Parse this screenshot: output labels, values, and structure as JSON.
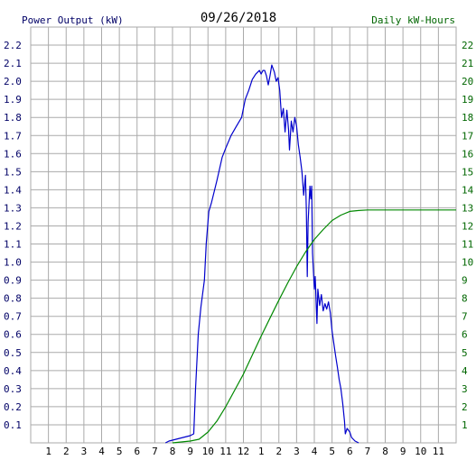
{
  "header": {
    "left_label": "Power Output (kW)",
    "date": "09/26/2018",
    "right_label": "Daily kW-Hours"
  },
  "colors": {
    "power": "#0000cc",
    "energy": "#008800",
    "grid": "#aaaaaa",
    "axis_text_left": "#000066",
    "axis_text_right": "#006600"
  },
  "chart_data": {
    "type": "line",
    "title": "09/26/2018",
    "x_tick_labels": [
      "1",
      "2",
      "3",
      "4",
      "5",
      "6",
      "7",
      "8",
      "9",
      "10",
      "11",
      "12",
      "1",
      "2",
      "3",
      "4",
      "5",
      "6",
      "7",
      "8",
      "9",
      "10",
      "11"
    ],
    "x_unit": "hour of day (0-24)",
    "xlim": [
      0,
      24
    ],
    "y_left": {
      "label": "Power Output (kW)",
      "ylim": [
        0,
        2.3
      ],
      "ticks": [
        "0.1",
        "0.2",
        "0.3",
        "0.4",
        "0.5",
        "0.6",
        "0.7",
        "0.8",
        "0.9",
        "1.0",
        "1.1",
        "1.2",
        "1.3",
        "1.4",
        "1.5",
        "1.6",
        "1.7",
        "1.8",
        "1.9",
        "2.0",
        "2.1",
        "2.2"
      ]
    },
    "y_right": {
      "label": "Daily kW-Hours",
      "ylim": [
        0,
        23
      ],
      "ticks": [
        "1",
        "2",
        "3",
        "4",
        "5",
        "6",
        "7",
        "8",
        "9",
        "10",
        "11",
        "12",
        "13",
        "14",
        "15",
        "16",
        "17",
        "18",
        "19",
        "20",
        "21",
        "22"
      ]
    },
    "grid": true,
    "series": [
      {
        "name": "Power Output (kW)",
        "axis": "left",
        "points": [
          [
            7.6,
            0.0
          ],
          [
            7.8,
            0.01
          ],
          [
            8.2,
            0.02
          ],
          [
            8.6,
            0.03
          ],
          [
            9.0,
            0.04
          ],
          [
            9.2,
            0.05
          ],
          [
            9.3,
            0.3
          ],
          [
            9.45,
            0.6
          ],
          [
            9.6,
            0.75
          ],
          [
            9.8,
            0.9
          ],
          [
            9.9,
            1.1
          ],
          [
            10.05,
            1.28
          ],
          [
            10.2,
            1.33
          ],
          [
            10.5,
            1.45
          ],
          [
            10.8,
            1.58
          ],
          [
            11.0,
            1.63
          ],
          [
            11.3,
            1.7
          ],
          [
            11.6,
            1.75
          ],
          [
            11.9,
            1.8
          ],
          [
            12.1,
            1.9
          ],
          [
            12.3,
            1.95
          ],
          [
            12.5,
            2.01
          ],
          [
            12.7,
            2.04
          ],
          [
            12.9,
            2.06
          ],
          [
            13.0,
            2.04
          ],
          [
            13.1,
            2.06
          ],
          [
            13.2,
            2.06
          ],
          [
            13.3,
            2.03
          ],
          [
            13.4,
            1.98
          ],
          [
            13.5,
            2.03
          ],
          [
            13.6,
            2.09
          ],
          [
            13.75,
            2.05
          ],
          [
            13.85,
            2.0
          ],
          [
            13.95,
            2.02
          ],
          [
            14.05,
            1.95
          ],
          [
            14.15,
            1.8
          ],
          [
            14.25,
            1.85
          ],
          [
            14.35,
            1.72
          ],
          [
            14.45,
            1.84
          ],
          [
            14.55,
            1.73
          ],
          [
            14.6,
            1.62
          ],
          [
            14.7,
            1.78
          ],
          [
            14.8,
            1.72
          ],
          [
            14.9,
            1.8
          ],
          [
            15.0,
            1.75
          ],
          [
            15.1,
            1.65
          ],
          [
            15.2,
            1.58
          ],
          [
            15.3,
            1.5
          ],
          [
            15.4,
            1.37
          ],
          [
            15.5,
            1.48
          ],
          [
            15.55,
            1.28
          ],
          [
            15.6,
            0.92
          ],
          [
            15.65,
            1.22
          ],
          [
            15.75,
            1.42
          ],
          [
            15.8,
            1.35
          ],
          [
            15.85,
            1.42
          ],
          [
            15.9,
            1.05
          ],
          [
            16.0,
            0.85
          ],
          [
            16.05,
            0.92
          ],
          [
            16.1,
            0.78
          ],
          [
            16.15,
            0.66
          ],
          [
            16.2,
            0.85
          ],
          [
            16.3,
            0.76
          ],
          [
            16.4,
            0.82
          ],
          [
            16.5,
            0.73
          ],
          [
            16.6,
            0.77
          ],
          [
            16.7,
            0.74
          ],
          [
            16.8,
            0.78
          ],
          [
            16.9,
            0.72
          ],
          [
            17.0,
            0.62
          ],
          [
            17.1,
            0.55
          ],
          [
            17.2,
            0.48
          ],
          [
            17.3,
            0.42
          ],
          [
            17.4,
            0.35
          ],
          [
            17.5,
            0.3
          ],
          [
            17.6,
            0.22
          ],
          [
            17.7,
            0.12
          ],
          [
            17.75,
            0.05
          ],
          [
            17.85,
            0.08
          ],
          [
            18.0,
            0.06
          ],
          [
            18.1,
            0.03
          ],
          [
            18.3,
            0.01
          ],
          [
            18.5,
            0.0
          ]
        ]
      },
      {
        "name": "Daily kW-Hours",
        "axis": "right",
        "points": [
          [
            8.0,
            0.0
          ],
          [
            9.0,
            0.1
          ],
          [
            9.5,
            0.2
          ],
          [
            10.0,
            0.6
          ],
          [
            10.5,
            1.2
          ],
          [
            11.0,
            2.0
          ],
          [
            11.5,
            2.9
          ],
          [
            12.0,
            3.8
          ],
          [
            12.5,
            4.85
          ],
          [
            13.0,
            5.9
          ],
          [
            13.5,
            6.9
          ],
          [
            14.0,
            7.9
          ],
          [
            14.5,
            8.85
          ],
          [
            15.0,
            9.75
          ],
          [
            15.5,
            10.55
          ],
          [
            16.0,
            11.25
          ],
          [
            16.5,
            11.8
          ],
          [
            17.0,
            12.3
          ],
          [
            17.5,
            12.6
          ],
          [
            18.0,
            12.8
          ],
          [
            18.5,
            12.85
          ],
          [
            19.0,
            12.88
          ],
          [
            20.0,
            12.88
          ],
          [
            22.0,
            12.88
          ],
          [
            24.0,
            12.88
          ]
        ]
      }
    ]
  }
}
